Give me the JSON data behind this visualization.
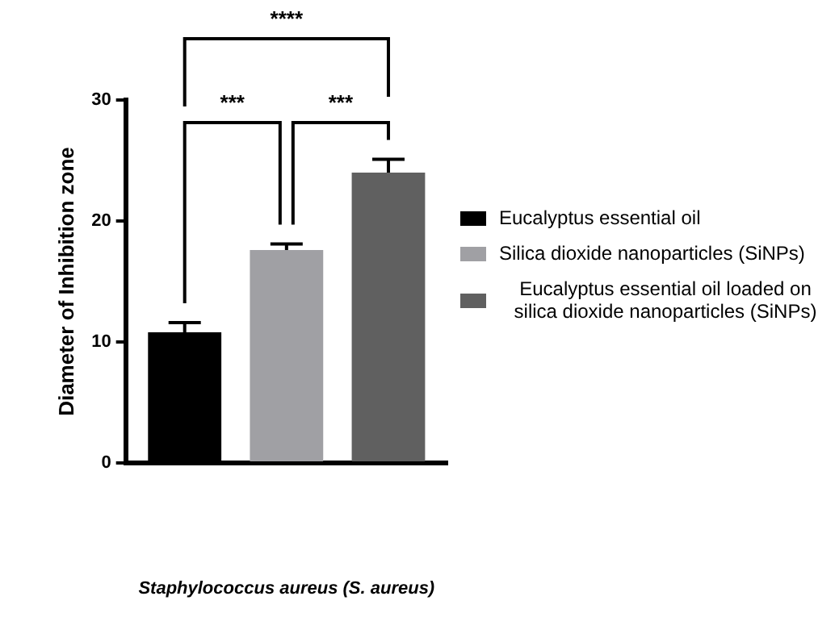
{
  "chart_data": {
    "type": "bar",
    "ylabel": "Diameter of Inhibition zone",
    "categories": [
      null
    ],
    "series": [
      {
        "name": "Eucalyptus essential oil",
        "color": "#000000",
        "values": [
          10.8
        ],
        "errors": [
          0.8
        ]
      },
      {
        "name": "Silica dioxide nanoparticles (SiNPs)",
        "color": "#a0a0a4",
        "values": [
          17.6
        ],
        "errors": [
          0.5
        ]
      },
      {
        "name": "Eucalyptus essential oil loaded on silica dioxide nanoparticles (SiNPs)",
        "color": "#606060",
        "values": [
          24
        ],
        "errors": [
          1.1
        ]
      }
    ],
    "ylim": [
      0,
      30
    ],
    "yticks": [
      0,
      10,
      20,
      30
    ],
    "tick_labels": "y",
    "legend": "right",
    "annotations": [
      "****",
      "***",
      "***",
      "Staphylococcus aureus (S. aureus)"
    ]
  }
}
